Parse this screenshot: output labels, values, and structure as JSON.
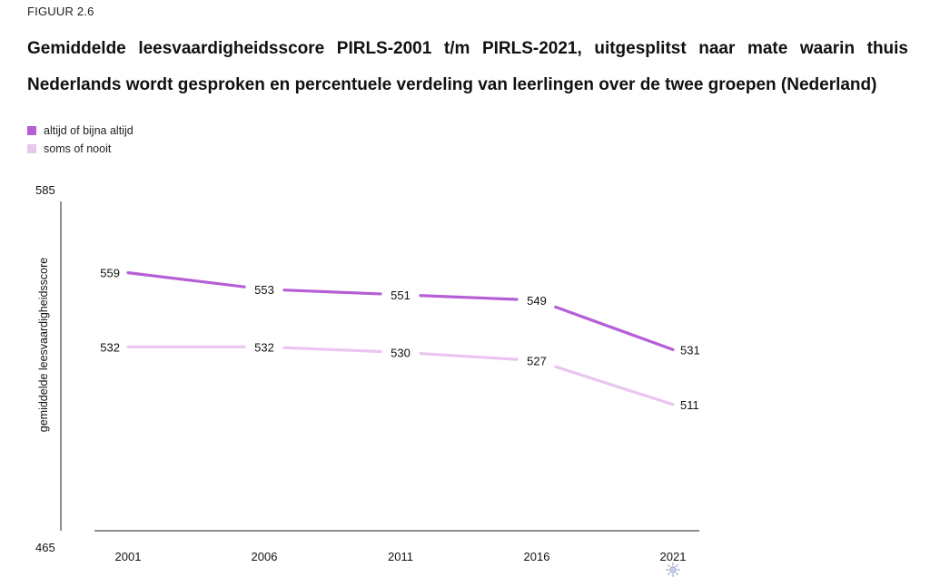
{
  "figure_label": "FIGUUR 2.6",
  "chart_data": {
    "type": "line",
    "title": "Gemiddelde leesvaardigheidsscore PIRLS-2001 t/m PIRLS-2021, uitgesplitst naar mate waarin thuis Nederlands wordt gesproken en percentuele verdeling van leerlingen over de twee groepen (Nederland)",
    "xlabel": "",
    "ylabel": "gemiddelde leesvaardigheidsscore",
    "categories": [
      "2001",
      "2006",
      "2011",
      "2016",
      "2021"
    ],
    "ylim": [
      465,
      585
    ],
    "y_ticks": [
      "585",
      "465"
    ],
    "legend_position": "top-left",
    "grid": false,
    "marker_2021": "sun-icon",
    "series": [
      {
        "name": "altijd of bijna altijd",
        "color": "#b55ed6",
        "values": [
          559,
          553,
          551,
          549,
          531
        ],
        "labels": [
          "559",
          "553",
          "551",
          "549",
          "531"
        ]
      },
      {
        "name": "soms of nooit",
        "color": "#eac5f0",
        "values": [
          532,
          532,
          530,
          527,
          511
        ],
        "labels": [
          "532",
          "532",
          "530",
          "527",
          "511"
        ]
      }
    ]
  }
}
